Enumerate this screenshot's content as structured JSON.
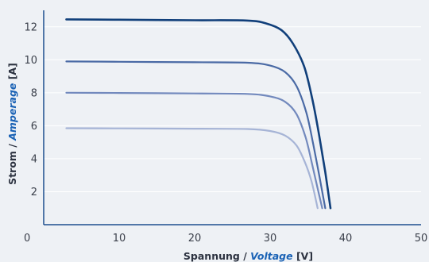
{
  "chart_data": {
    "type": "line",
    "title": "",
    "xlabel": {
      "prefix": "Spannung / ",
      "emphasis": "Voltage",
      "suffix": " [V]"
    },
    "ylabel": {
      "prefix": "Strom / ",
      "emphasis": "Amperage",
      "suffix": " [A]"
    },
    "xlim": [
      0,
      50
    ],
    "ylim": [
      0,
      13
    ],
    "x_ticks": [
      "0",
      "10",
      "20",
      "30",
      "40",
      "50"
    ],
    "y_ticks": [
      "2",
      "4",
      "6",
      "8",
      "10",
      "12"
    ],
    "grid": "horizontal",
    "series": [
      {
        "color": "#103f7a",
        "points": [
          [
            3,
            12.45
          ],
          [
            10,
            12.43
          ],
          [
            20,
            12.4
          ],
          [
            27,
            12.38
          ],
          [
            29.5,
            12.2
          ],
          [
            31.5,
            11.8
          ],
          [
            33,
            11.0
          ],
          [
            34.5,
            9.6
          ],
          [
            35.6,
            7.6
          ],
          [
            36.5,
            5.4
          ],
          [
            37.3,
            3.2
          ],
          [
            38,
            1.0
          ]
        ]
      },
      {
        "color": "#4a6aa5",
        "points": [
          [
            3,
            9.9
          ],
          [
            10,
            9.88
          ],
          [
            20,
            9.85
          ],
          [
            27,
            9.82
          ],
          [
            30,
            9.65
          ],
          [
            32,
            9.25
          ],
          [
            33.5,
            8.4
          ],
          [
            34.8,
            6.8
          ],
          [
            35.7,
            4.9
          ],
          [
            36.5,
            3.0
          ],
          [
            37.3,
            1.0
          ]
        ]
      },
      {
        "color": "#7289bd",
        "points": [
          [
            3,
            8.0
          ],
          [
            10,
            7.99
          ],
          [
            20,
            7.96
          ],
          [
            27,
            7.93
          ],
          [
            30,
            7.78
          ],
          [
            32,
            7.45
          ],
          [
            33.5,
            6.7
          ],
          [
            34.7,
            5.3
          ],
          [
            35.6,
            3.6
          ],
          [
            36.3,
            2.2
          ],
          [
            36.9,
            1.0
          ]
        ]
      },
      {
        "color": "#a6b4d6",
        "points": [
          [
            3,
            5.85
          ],
          [
            10,
            5.84
          ],
          [
            20,
            5.82
          ],
          [
            27,
            5.8
          ],
          [
            30,
            5.68
          ],
          [
            32,
            5.4
          ],
          [
            33.5,
            4.8
          ],
          [
            34.6,
            3.8
          ],
          [
            35.5,
            2.6
          ],
          [
            36.3,
            1.0
          ]
        ]
      }
    ]
  }
}
